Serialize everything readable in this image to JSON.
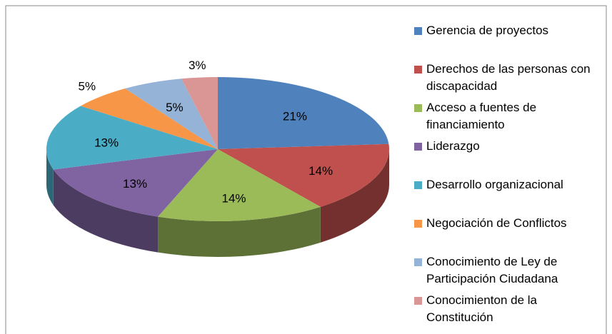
{
  "chart_data": {
    "type": "pie3d",
    "categories": [
      "Gerencia de proyectos",
      "Derechos de las personas con discapacidad",
      "Acceso a fuentes de financiamiento",
      "Liderazgo",
      "Desarrollo organizacional",
      "Negociación de Conflictos",
      "Conocimiento de Ley de Participación Ciudadana",
      "Conocimienton de la Constitución"
    ],
    "values": [
      21,
      14,
      14,
      13,
      13,
      5,
      5,
      3
    ],
    "value_labels": [
      "21%",
      "14%",
      "14%",
      "13%",
      "13%",
      "5%",
      "5%",
      "3%"
    ],
    "colors": [
      "#4f81bd",
      "#c0504d",
      "#9bbb59",
      "#8064a2",
      "#4bacc6",
      "#f79646",
      "#95b3d7",
      "#d99694"
    ],
    "legend": "right"
  }
}
